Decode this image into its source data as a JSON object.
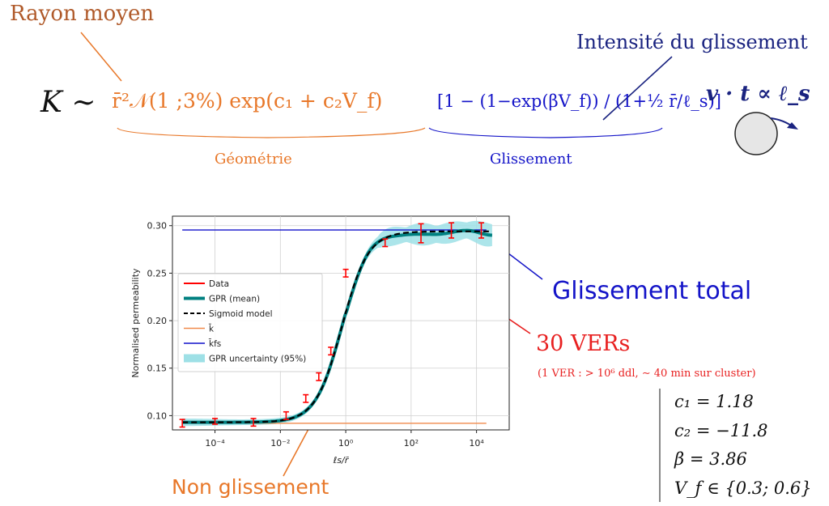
{
  "annotations": {
    "rayon_moyen": "Rayon moyen",
    "intensite_glissement": "Intensité du glissement",
    "geometrie": "Géométrie",
    "glissement": "Glissement",
    "glissement_total": "Glissement total",
    "vers_count": "30 VERs",
    "vers_detail": "(1 VER : > 10⁶ ddl, ∼ 40 min sur cluster)",
    "non_glissement": "Non glissement"
  },
  "formula": {
    "lhs": "K ∼",
    "geometry_term": "r̄²𝒩(1 ;3%) exp(c₁ + c₂V_f)",
    "slip_term": "[1 − (1−exp(βV_f)) / (1+½ r̄/ℓ_s)]",
    "side_relation": "v · t ∝ ℓ_s"
  },
  "parameters": [
    {
      "label": "c₁ = 1.18"
    },
    {
      "label": "c₂ = −11.8"
    },
    {
      "label": "β = 3.86"
    },
    {
      "label": "V_f ∈ {0.3; 0.6}"
    }
  ],
  "colors": {
    "orange_text": "#e8782a",
    "brown_text": "#b05a2a",
    "blue_text": "#1414c8",
    "navy_text": "#1a2380",
    "red_text": "#e82020",
    "data_red": "#ff0000",
    "gpr_teal": "#008080",
    "band_cyan": "#9ee0e6",
    "kbar_orange": "#f08a4b",
    "kfs_blue": "#1010cc"
  },
  "chart_data": {
    "type": "line",
    "xscale": "log",
    "xlabel": "ℓs/r̄",
    "ylabel": "Normalised permeability",
    "xlim": [
      5e-06,
      100000
    ],
    "ylim": [
      0.085,
      0.31
    ],
    "x_ticks": [
      {
        "value": 0.0001,
        "label": "10⁻⁴"
      },
      {
        "value": 0.01,
        "label": "10⁻²"
      },
      {
        "value": 1,
        "label": "10⁰"
      },
      {
        "value": 100,
        "label": "10²"
      },
      {
        "value": 10000,
        "label": "10⁴"
      }
    ],
    "y_ticks": [
      {
        "value": 0.1,
        "label": "0.10"
      },
      {
        "value": 0.15,
        "label": "0.15"
      },
      {
        "value": 0.2,
        "label": "0.20"
      },
      {
        "value": 0.25,
        "label": "0.25"
      },
      {
        "value": 0.3,
        "label": "0.30"
      }
    ],
    "grid": true,
    "legend_position": "center-left",
    "legend": [
      {
        "label": "Data",
        "style": "data"
      },
      {
        "label": "GPR (mean)",
        "style": "gpr"
      },
      {
        "label": "Sigmoid model",
        "style": "sigmoid"
      },
      {
        "label": "k̄",
        "style": "kbar"
      },
      {
        "label": "k̄fs",
        "style": "kfs"
      },
      {
        "label": "GPR uncertainty (95%)",
        "style": "band"
      }
    ],
    "data_points": [
      {
        "x": 1e-05,
        "y": 0.092,
        "err": 0.004
      },
      {
        "x": 0.0001,
        "y": 0.094,
        "err": 0.003
      },
      {
        "x": 0.0015,
        "y": 0.093,
        "err": 0.004
      },
      {
        "x": 0.015,
        "y": 0.1,
        "err": 0.004
      },
      {
        "x": 0.06,
        "y": 0.118,
        "err": 0.004
      },
      {
        "x": 0.15,
        "y": 0.141,
        "err": 0.004
      },
      {
        "x": 0.35,
        "y": 0.168,
        "err": 0.004
      },
      {
        "x": 1.0,
        "y": 0.25,
        "err": 0.004
      },
      {
        "x": 16,
        "y": 0.282,
        "err": 0.004
      },
      {
        "x": 200,
        "y": 0.292,
        "err": 0.01
      },
      {
        "x": 1700,
        "y": 0.295,
        "err": 0.008
      },
      {
        "x": 14000,
        "y": 0.295,
        "err": 0.008
      }
    ],
    "sigmoid": {
      "k_low": 0.093,
      "k_high": 0.294,
      "center_log10": -0.12,
      "width": 0.4
    },
    "gpr_offsets": [
      {
        "x": 1.5,
        "dy": -0.002
      },
      {
        "x": 6,
        "dy": 0.001
      },
      {
        "x": 60,
        "dy": -0.002
      },
      {
        "x": 600,
        "dy": -0.003
      },
      {
        "x": 5000,
        "dy": 0.001
      },
      {
        "x": 30000,
        "dy": -0.004
      }
    ],
    "band_halfwidth": [
      {
        "x": 1e-05,
        "h": 0.004
      },
      {
        "x": 0.001,
        "h": 0.003
      },
      {
        "x": 1,
        "h": 0.003
      },
      {
        "x": 30,
        "h": 0.007
      },
      {
        "x": 300,
        "h": 0.009
      },
      {
        "x": 3000,
        "h": 0.008
      },
      {
        "x": 30000,
        "h": 0.01
      }
    ],
    "hlines": [
      {
        "name": "k̄",
        "y": 0.092,
        "x_range": [
          1e-05,
          20000
        ]
      },
      {
        "name": "k̄fs",
        "y": 0.2955,
        "x_range": [
          1e-05,
          20000
        ]
      }
    ]
  }
}
